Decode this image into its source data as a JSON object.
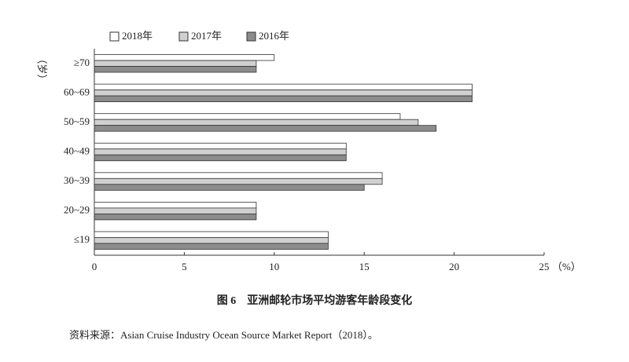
{
  "chart_data": {
    "type": "hbar",
    "title": "图 6　亚洲邮轮市场平均游客年龄段变化",
    "source": "资料来源：Asian Cruise Industry Ocean Source Market Report（2018）。",
    "ylabel": "（岁）",
    "xunit": "（%）",
    "categories": [
      "≥70",
      "60~69",
      "50~59",
      "40~49",
      "30~39",
      "20~29",
      "≤19"
    ],
    "series": [
      {
        "name": "2018年",
        "color": "#ffffff",
        "values": [
          10,
          21,
          17,
          14,
          16,
          9,
          13
        ]
      },
      {
        "name": "2017年",
        "color": "#d0d0d0",
        "values": [
          9,
          21,
          18,
          14,
          16,
          9,
          13
        ]
      },
      {
        "name": "2016年",
        "color": "#8c8c8c",
        "values": [
          9,
          21,
          19,
          14,
          15,
          9,
          13
        ]
      }
    ],
    "xlim": [
      0,
      25
    ],
    "xticks": [
      0,
      5,
      10,
      15,
      20,
      25
    ]
  }
}
